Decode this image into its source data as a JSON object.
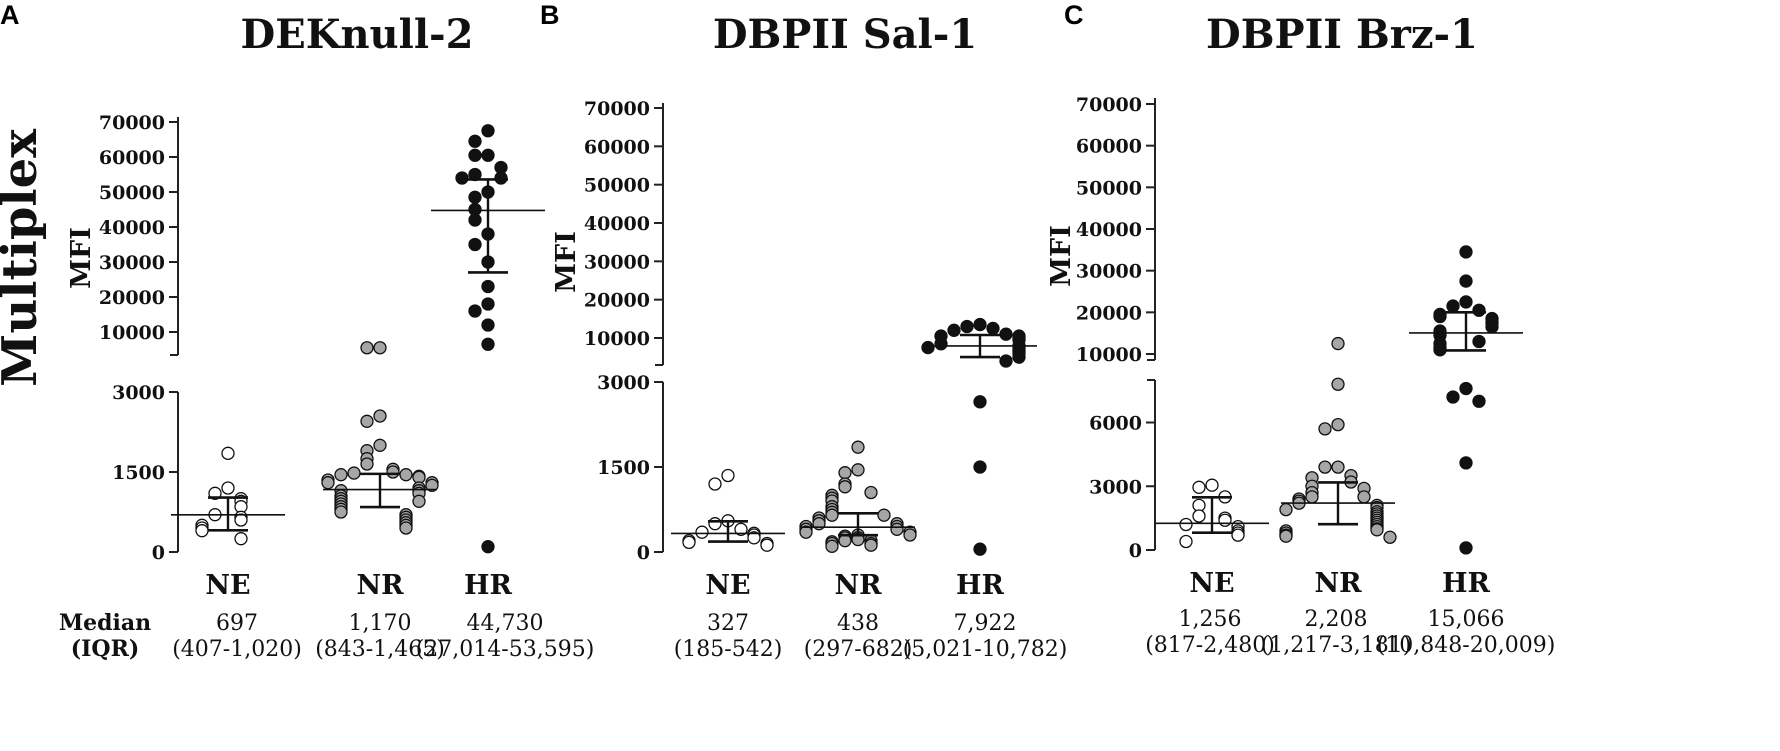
{
  "figure": {
    "row_title": "Multiplex",
    "stats_header": {
      "line1": "Median",
      "line2": "(IQR)"
    },
    "colors": {
      "NE": "#ffffff",
      "NR": "#a6a6a6",
      "HR": "#111111",
      "stroke": "#111111"
    }
  },
  "chart_data": [
    {
      "panel": "A",
      "type": "scatter",
      "title": "DEKnull-2",
      "ylabel": "MFI",
      "categories": [
        "NE",
        "NR",
        "HR"
      ],
      "lower_ticks": [
        0,
        1500,
        3000
      ],
      "upper_ticks": [
        10000,
        20000,
        30000,
        40000,
        50000,
        60000,
        70000
      ],
      "ylim_lower": [
        0,
        3000
      ],
      "ylim_upper": [
        3000,
        70000
      ],
      "stats": [
        {
          "median": "697",
          "iqr": "(407-1,020)"
        },
        {
          "median": "1,170",
          "iqr": "(843-1,465)"
        },
        {
          "median": "44,730",
          "iqr": "(27,014-53,595)"
        }
      ],
      "series": [
        {
          "name": "NE",
          "median": 697,
          "q1": 407,
          "q3": 1020,
          "values": [
            1850,
            1200,
            1100,
            1000,
            950,
            850,
            700,
            650,
            600,
            500,
            450,
            400,
            250
          ]
        },
        {
          "name": "NR",
          "median": 1170,
          "q1": 843,
          "q3": 1465,
          "values": [
            5500,
            5500,
            2550,
            2450,
            2000,
            1900,
            1750,
            1650,
            1550,
            1500,
            1480,
            1450,
            1450,
            1420,
            1400,
            1350,
            1300,
            1300,
            1250,
            1200,
            1150,
            1150,
            1100,
            1050,
            1000,
            950,
            950,
            900,
            850,
            800,
            750,
            700,
            650,
            600,
            550,
            500,
            450
          ]
        },
        {
          "name": "HR",
          "median": 44730,
          "q1": 27014,
          "q3": 53595,
          "values": [
            67500,
            64500,
            60500,
            60500,
            57000,
            55000,
            54000,
            54000,
            50000,
            48500,
            45000,
            42000,
            38000,
            35000,
            30000,
            23000,
            18000,
            16000,
            12000,
            6500,
            100
          ]
        }
      ]
    },
    {
      "panel": "B",
      "type": "scatter",
      "title": "DBPII Sal-1",
      "ylabel": "MFI",
      "categories": [
        "NE",
        "NR",
        "HR"
      ],
      "lower_ticks": [
        0,
        1500,
        3000
      ],
      "upper_ticks": [
        10000,
        20000,
        30000,
        40000,
        50000,
        60000,
        70000
      ],
      "ylim_lower": [
        0,
        3000
      ],
      "ylim_upper": [
        3000,
        70000
      ],
      "stats": [
        {
          "median": "327",
          "iqr": "(185-542)"
        },
        {
          "median": "438",
          "iqr": "(297-682)"
        },
        {
          "median": "7,922",
          "iqr": "(5,021-10,782)"
        }
      ],
      "series": [
        {
          "name": "NE",
          "median": 327,
          "q1": 185,
          "q3": 542,
          "values": [
            1350,
            1200,
            550,
            500,
            400,
            350,
            330,
            300,
            250,
            200,
            170,
            150,
            120
          ]
        },
        {
          "name": "NR",
          "median": 438,
          "q1": 297,
          "q3": 682,
          "values": [
            1850,
            1450,
            1400,
            1200,
            1150,
            1050,
            1000,
            950,
            900,
            800,
            750,
            700,
            650,
            650,
            600,
            550,
            500,
            500,
            450,
            450,
            400,
            400,
            350,
            350,
            300,
            300,
            280,
            250,
            250,
            220,
            200,
            200,
            180,
            150,
            150,
            120,
            100
          ]
        },
        {
          "name": "HR",
          "median": 7922,
          "q1": 5021,
          "q3": 10782,
          "values": [
            13500,
            13000,
            12500,
            12000,
            11000,
            10500,
            10500,
            10000,
            9500,
            8500,
            8000,
            7500,
            7500,
            7000,
            6500,
            6000,
            5000,
            4000,
            2650,
            1500,
            50
          ]
        }
      ]
    },
    {
      "panel": "C",
      "type": "scatter",
      "title": "DBPII Brz-1",
      "ylabel": "MFI",
      "categories": [
        "NE",
        "NR",
        "HR"
      ],
      "lower_ticks": [
        0,
        3000,
        6000
      ],
      "upper_ticks": [
        10000,
        20000,
        30000,
        40000,
        50000,
        60000,
        70000
      ],
      "ylim_lower": [
        0,
        8000
      ],
      "ylim_upper": [
        8000,
        70000
      ],
      "stats": [
        {
          "median": "1,256",
          "iqr": "(817-2,480)"
        },
        {
          "median": "2,208",
          "iqr": "(1,217-3,181)"
        },
        {
          "median": "15,066",
          "iqr": "(10,848-20,009)"
        }
      ],
      "series": [
        {
          "name": "NE",
          "median": 1256,
          "q1": 817,
          "q3": 2480,
          "values": [
            3050,
            2950,
            2500,
            2100,
            1600,
            1500,
            1400,
            1200,
            1100,
            900,
            800,
            700,
            400
          ]
        },
        {
          "name": "NR",
          "median": 2208,
          "q1": 1217,
          "q3": 3181,
          "values": [
            12500,
            7800,
            5900,
            5700,
            3900,
            3900,
            3500,
            3400,
            3200,
            3000,
            2900,
            2700,
            2500,
            2500,
            2400,
            2300,
            2200,
            2100,
            2000,
            1900,
            1800,
            1700,
            1600,
            1500,
            1400,
            1300,
            1200,
            1100,
            1000,
            950,
            900,
            800,
            700,
            650,
            600
          ]
        },
        {
          "name": "HR",
          "median": 15066,
          "q1": 10848,
          "q3": 20009,
          "values": [
            34500,
            27500,
            22500,
            21500,
            20500,
            19500,
            19000,
            18500,
            17500,
            16500,
            15500,
            14500,
            13000,
            12500,
            11500,
            11000,
            7600,
            7200,
            7000,
            4100,
            100
          ]
        }
      ]
    }
  ]
}
